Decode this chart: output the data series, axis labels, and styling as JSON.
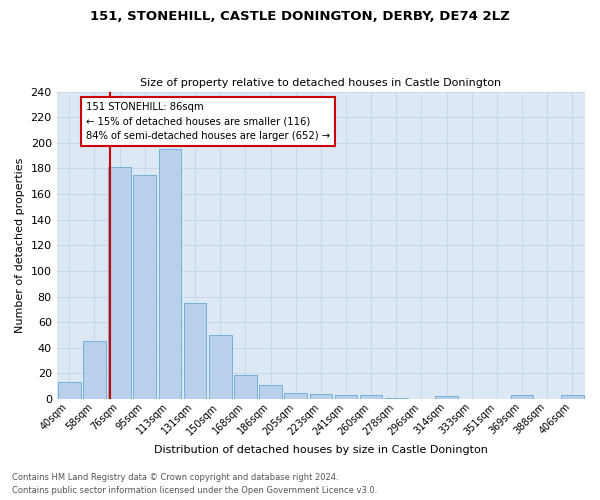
{
  "title1": "151, STONEHILL, CASTLE DONINGTON, DERBY, DE74 2LZ",
  "title2": "Size of property relative to detached houses in Castle Donington",
  "xlabel": "Distribution of detached houses by size in Castle Donington",
  "ylabel": "Number of detached properties",
  "footnote1": "Contains HM Land Registry data © Crown copyright and database right 2024.",
  "footnote2": "Contains public sector information licensed under the Open Government Licence v3.0.",
  "bar_labels": [
    "40sqm",
    "58sqm",
    "76sqm",
    "95sqm",
    "113sqm",
    "131sqm",
    "150sqm",
    "168sqm",
    "186sqm",
    "205sqm",
    "223sqm",
    "241sqm",
    "260sqm",
    "278sqm",
    "296sqm",
    "314sqm",
    "333sqm",
    "351sqm",
    "369sqm",
    "388sqm",
    "406sqm"
  ],
  "bar_values": [
    13,
    45,
    181,
    175,
    195,
    75,
    50,
    19,
    11,
    5,
    4,
    3,
    3,
    1,
    0,
    2,
    0,
    0,
    3,
    0,
    3
  ],
  "bar_color": "#b8d0ea",
  "bar_edge_color": "#6aaad4",
  "grid_color": "#c8d8e8",
  "background_color": "#dce9f5",
  "vline_color": "#cc0000",
  "annotation_title": "151 STONEHILL: 86sqm",
  "annotation_line1": "← 15% of detached houses are smaller (116)",
  "annotation_line2": "84% of semi-detached houses are larger (652) →",
  "annotation_box_color": "#ffffff",
  "annotation_box_edge": "#cc0000",
  "ylim": [
    0,
    240
  ],
  "yticks": [
    0,
    20,
    40,
    60,
    80,
    100,
    120,
    140,
    160,
    180,
    200,
    220,
    240
  ]
}
